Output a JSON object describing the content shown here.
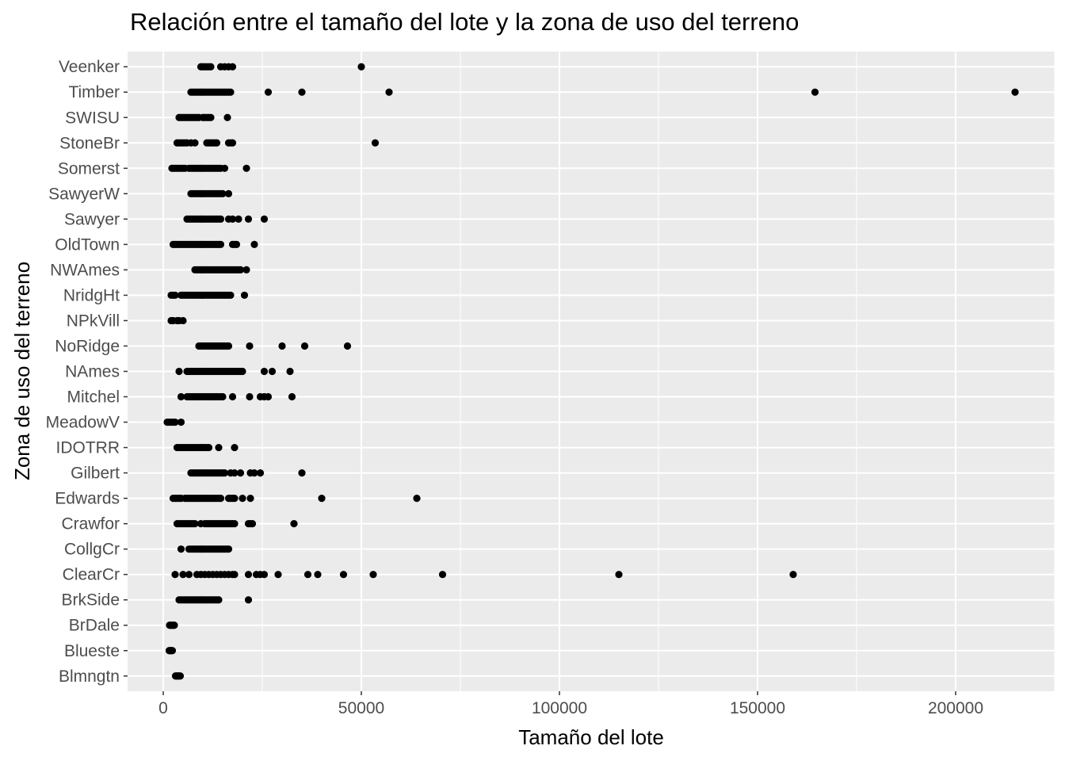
{
  "chart_data": {
    "type": "scatter",
    "title": "Relación entre el tamaño del lote y la zona de uso del terreno",
    "xlabel": "Tamaño del lote",
    "ylabel": "Zona de uso del terreno",
    "xlim": [
      -9000,
      225000
    ],
    "x_ticks": [
      0,
      50000,
      100000,
      150000,
      200000
    ],
    "x_tick_labels": [
      "0",
      "50000",
      "100000",
      "150000",
      "200000"
    ],
    "categories": [
      "Blmngtn",
      "Blueste",
      "BrDale",
      "BrkSide",
      "ClearCr",
      "CollgCr",
      "Crawfor",
      "Edwards",
      "Gilbert",
      "IDOTRR",
      "MeadowV",
      "Mitchel",
      "NAmes",
      "NoRidge",
      "NPkVill",
      "NridgHt",
      "NWAmes",
      "OldTown",
      "Sawyer",
      "SawyerW",
      "Somerst",
      "StoneBr",
      "SWISU",
      "Timber",
      "Veenker"
    ],
    "grid": true,
    "point_color": "#000000",
    "background": "#ebebeb",
    "points": {
      "Blmngtn": [
        3100,
        3300,
        3500,
        3800,
        4000,
        4300
      ],
      "Blueste": [
        1500,
        1700,
        1900,
        2100,
        2300
      ],
      "BrDale": [
        1600,
        1800,
        2000,
        2200,
        2400,
        2600,
        2800
      ],
      "BrkSide": [
        4000,
        4500,
        5000,
        5500,
        6000,
        6500,
        7000,
        7500,
        8000,
        8500,
        9000,
        9500,
        10000,
        10500,
        11000,
        11500,
        12000,
        12500,
        13000,
        13500,
        14000,
        21500
      ],
      "ClearCr": [
        3000,
        5000,
        6500,
        8500,
        9500,
        10500,
        11500,
        12500,
        13500,
        14500,
        15500,
        16500,
        17500,
        18000,
        21500,
        23500,
        24500,
        25500,
        29000,
        36500,
        39000,
        45500,
        53000,
        70500,
        115000,
        159000
      ],
      "CollgCr": [
        4500,
        6500,
        7000,
        7500,
        8000,
        8500,
        9000,
        9500,
        10000,
        10500,
        11000,
        11500,
        12000,
        12500,
        13000,
        13500,
        14000,
        14500,
        15000,
        15500,
        16000,
        16500
      ],
      "Crawfor": [
        3500,
        4000,
        4500,
        5000,
        5500,
        6000,
        6500,
        7000,
        7500,
        8000,
        9500,
        10500,
        11000,
        11500,
        12000,
        12500,
        13000,
        13500,
        14000,
        14500,
        15000,
        15500,
        16000,
        16500,
        17000,
        17500,
        18000,
        21500,
        22000,
        22500,
        33000
      ],
      "Edwards": [
        2500,
        3000,
        3500,
        4000,
        4500,
        5500,
        6000,
        6500,
        7000,
        7500,
        8000,
        8500,
        9000,
        9500,
        10000,
        10500,
        11000,
        11500,
        12000,
        12500,
        13000,
        13500,
        14000,
        14500,
        16500,
        17000,
        17500,
        18000,
        20000,
        22000,
        40000,
        64000
      ],
      "Gilbert": [
        7000,
        7500,
        8000,
        8500,
        9000,
        9500,
        10000,
        10500,
        11000,
        11500,
        12000,
        12500,
        13000,
        13500,
        14000,
        14500,
        15000,
        15500,
        17000,
        18000,
        19500,
        22000,
        23000,
        24500,
        35000
      ],
      "IDOTRR": [
        3500,
        4000,
        4500,
        5000,
        5500,
        6000,
        6500,
        7000,
        7500,
        8000,
        8500,
        9000,
        9500,
        10000,
        10500,
        11000,
        11500,
        14000,
        18000
      ],
      "MeadowV": [
        1000,
        1500,
        2000,
        2500,
        3000,
        4500
      ],
      "Mitchel": [
        4500,
        6000,
        6500,
        7000,
        7500,
        8000,
        8500,
        9000,
        9500,
        10000,
        10500,
        11000,
        11500,
        12000,
        12500,
        13000,
        13500,
        14000,
        14500,
        15000,
        17500,
        21800,
        24500,
        25500,
        26500,
        32500
      ],
      "NAmes": [
        4000,
        6000,
        6500,
        7000,
        7500,
        8000,
        8500,
        9000,
        9500,
        10000,
        10500,
        11000,
        11500,
        12000,
        12500,
        13000,
        13500,
        14000,
        14500,
        15000,
        15500,
        16000,
        16500,
        17000,
        17500,
        18000,
        18500,
        19000,
        19500,
        20000,
        25500,
        27500,
        32000
      ],
      "NoRidge": [
        9000,
        9500,
        10000,
        10500,
        11000,
        11500,
        12000,
        12500,
        13000,
        13500,
        14000,
        14500,
        15000,
        15500,
        16000,
        16500,
        21800,
        30000,
        35700,
        46500
      ],
      "NPkVill": [
        2000,
        2500,
        3500,
        4000,
        5000
      ],
      "NridgHt": [
        2000,
        2500,
        3000,
        4500,
        5000,
        5500,
        6000,
        6500,
        7000,
        7500,
        8000,
        8500,
        9000,
        9500,
        10000,
        10500,
        11000,
        11500,
        12000,
        12500,
        13000,
        13500,
        14000,
        14500,
        15000,
        15500,
        16000,
        16500,
        17000,
        20500
      ],
      "NWAmes": [
        8000,
        8500,
        9000,
        9500,
        10000,
        10500,
        11000,
        11500,
        12000,
        12500,
        13000,
        13500,
        14000,
        14500,
        15000,
        15500,
        16000,
        16500,
        17000,
        17500,
        18000,
        18500,
        19000,
        19500,
        21000
      ],
      "OldTown": [
        2500,
        3000,
        3500,
        4000,
        4500,
        5000,
        5500,
        6000,
        6500,
        7000,
        7500,
        8000,
        8500,
        9000,
        9500,
        10000,
        10500,
        11000,
        11500,
        12000,
        12500,
        13000,
        13500,
        14000,
        14500,
        17500,
        18000,
        18500,
        23000
      ],
      "Sawyer": [
        6000,
        6500,
        7000,
        7500,
        8000,
        8500,
        9000,
        9500,
        10000,
        10500,
        11000,
        11500,
        12000,
        12500,
        13000,
        13500,
        14000,
        14500,
        16500,
        17500,
        19000,
        21500,
        25500
      ],
      "SawyerW": [
        7000,
        7500,
        8000,
        8500,
        9000,
        9500,
        10000,
        10500,
        11000,
        11500,
        12000,
        12500,
        13000,
        13500,
        14000,
        14500,
        15000,
        16500
      ],
      "Somerst": [
        2200,
        2600,
        3000,
        3500,
        4000,
        4500,
        5000,
        5500,
        6500,
        7000,
        7500,
        8000,
        8500,
        9000,
        9500,
        10000,
        10500,
        11000,
        11500,
        12000,
        12500,
        13000,
        13500,
        14000,
        14500,
        15500,
        21000
      ],
      "StoneBr": [
        3500,
        4000,
        4500,
        5000,
        5500,
        6000,
        7000,
        8000,
        11000,
        11500,
        12000,
        12500,
        13000,
        13500,
        16500,
        17000,
        17500,
        53500
      ],
      "SWISU": [
        4000,
        4500,
        5000,
        5500,
        6000,
        6500,
        7000,
        7500,
        8000,
        8500,
        9000,
        10000,
        10500,
        11000,
        11500,
        12000,
        16200
      ],
      "Timber": [
        7000,
        7500,
        8000,
        8500,
        9000,
        9500,
        10000,
        10500,
        11000,
        11500,
        12000,
        12500,
        13000,
        13500,
        14000,
        14500,
        15000,
        15500,
        16000,
        16500,
        17000,
        26500,
        35000,
        57000,
        164500,
        215000
      ],
      "Veenker": [
        9500,
        10000,
        10500,
        11000,
        11500,
        12000,
        14500,
        15500,
        16500,
        17500,
        50000
      ]
    }
  }
}
